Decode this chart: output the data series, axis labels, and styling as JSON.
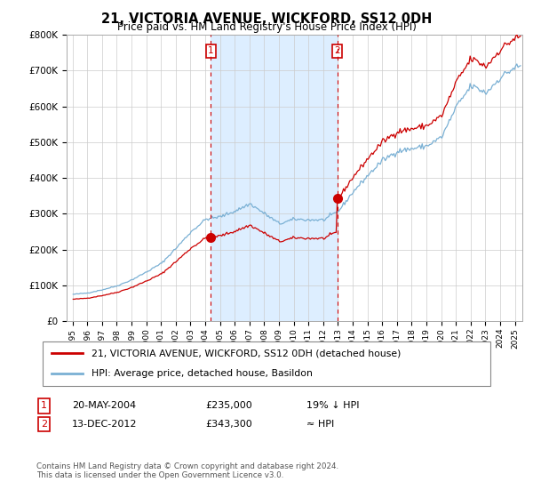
{
  "title": "21, VICTORIA AVENUE, WICKFORD, SS12 0DH",
  "subtitle": "Price paid vs. HM Land Registry's House Price Index (HPI)",
  "legend_line1": "21, VICTORIA AVENUE, WICKFORD, SS12 0DH (detached house)",
  "legend_line2": "HPI: Average price, detached house, Basildon",
  "annotation1_date": "20-MAY-2004",
  "annotation1_price": "£235,000",
  "annotation1_note": "19% ↓ HPI",
  "annotation2_date": "13-DEC-2012",
  "annotation2_price": "£343,300",
  "annotation2_note": "≈ HPI",
  "sale1_x": 2004.375,
  "sale1_y": 235000,
  "sale2_x": 2012.958,
  "sale2_y": 343300,
  "sale_color": "#cc0000",
  "hpi_color": "#7ab0d4",
  "shade_color": "#ddeeff",
  "vline_color": "#cc0000",
  "footer": "Contains HM Land Registry data © Crown copyright and database right 2024.\nThis data is licensed under the Open Government Licence v3.0.",
  "ylim": [
    0,
    800000
  ],
  "yticks": [
    0,
    100000,
    200000,
    300000,
    400000,
    500000,
    600000,
    700000,
    800000
  ],
  "xlim_start": 1994.6,
  "xlim_end": 2025.5,
  "xticks": [
    1995,
    1996,
    1997,
    1998,
    1999,
    2000,
    2001,
    2002,
    2003,
    2004,
    2005,
    2006,
    2007,
    2008,
    2009,
    2010,
    2011,
    2012,
    2013,
    2014,
    2015,
    2016,
    2017,
    2018,
    2019,
    2020,
    2021,
    2022,
    2023,
    2024,
    2025
  ]
}
